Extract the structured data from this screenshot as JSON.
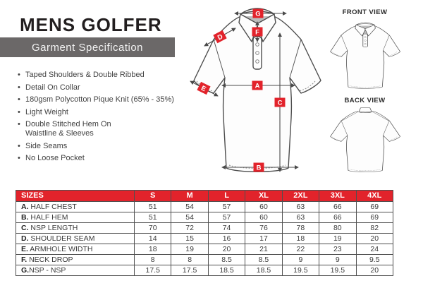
{
  "header": {
    "title": "MENS GOLFER",
    "subtitle": "Garment Specification"
  },
  "features": {
    "items": [
      "Taped Shoulders & Double Ribbed",
      "Detail On Collar",
      "180gsm Polycotton Pique Knit (65% - 35%)",
      "Light Weight",
      "Double Stitched Hem On\nWaistline & Sleeves",
      "Side Seams",
      "No Loose Pocket"
    ]
  },
  "diagram": {
    "front_view_label": "FRONT VIEW",
    "back_view_label": "BACK VIEW",
    "labels": [
      {
        "letter": "G"
      },
      {
        "letter": "F"
      },
      {
        "letter": "D"
      },
      {
        "letter": "E"
      },
      {
        "letter": "A"
      },
      {
        "letter": "C"
      },
      {
        "letter": "B"
      }
    ]
  },
  "table": {
    "header": [
      "SIZES",
      "S",
      "M",
      "L",
      "XL",
      "2XL",
      "3XL",
      "4XL"
    ],
    "rows": [
      {
        "prefix": "A.",
        "label": " HALF CHEST",
        "values": [
          51,
          54,
          57,
          60,
          63,
          66,
          69
        ]
      },
      {
        "prefix": "B.",
        "label": " HALF HEM",
        "values": [
          51,
          54,
          57,
          60,
          63,
          66,
          69
        ]
      },
      {
        "prefix": "C.",
        "label": " NSP LENGTH",
        "values": [
          70,
          72,
          74,
          76,
          78,
          80,
          82
        ]
      },
      {
        "prefix": "D.",
        "label": " SHOULDER SEAM",
        "values": [
          14,
          15,
          16,
          17,
          18,
          19,
          20
        ]
      },
      {
        "prefix": "E.",
        "label": " ARMHOLE WIDTH",
        "values": [
          18,
          19,
          20,
          21,
          22,
          23,
          24
        ]
      },
      {
        "prefix": "F.",
        "label": " NECK DROP",
        "values": [
          8,
          8,
          8.5,
          8.5,
          9,
          9,
          9.5
        ]
      },
      {
        "prefix": "G.",
        "label": "NSP - NSP",
        "values": [
          17.5,
          17.5,
          18.5,
          18.5,
          19.5,
          19.5,
          20
        ]
      }
    ]
  },
  "colors": {
    "accent_red": "#e2232b",
    "banner_gray": "#6b6868"
  }
}
